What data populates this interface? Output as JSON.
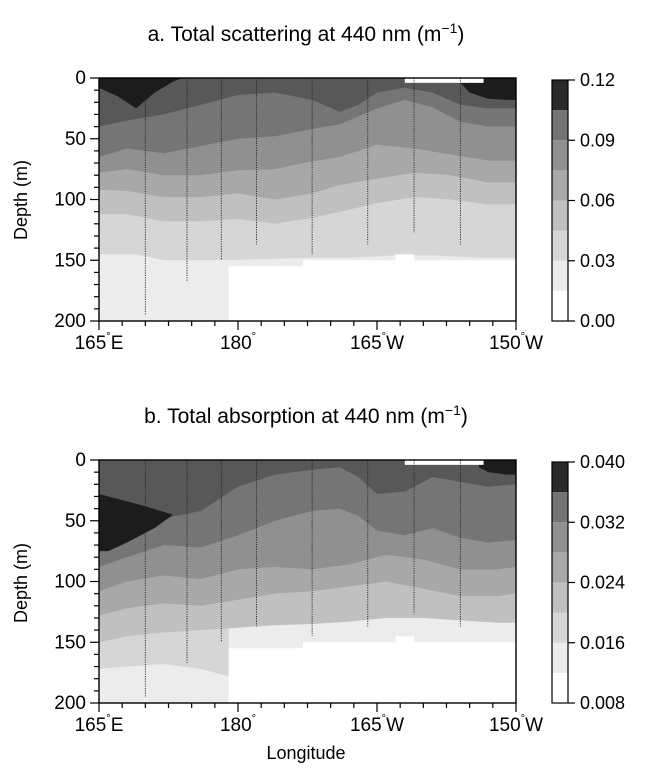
{
  "chart_data": [
    {
      "type": "heatmap",
      "panel": "a",
      "title": "a. Total scattering at 440 nm (m",
      "title_sup": "−1",
      "title_end": ")",
      "xlabel": "",
      "ylabel": "Depth (m)",
      "x_ticks": [
        165,
        180,
        195,
        210
      ],
      "x_tick_labels": [
        {
          "v": "165",
          "u": "E"
        },
        {
          "v": "180",
          "u": ""
        },
        {
          "v": "165",
          "u": "W"
        },
        {
          "v": "150",
          "u": "W"
        }
      ],
      "xlim": [
        165,
        210
      ],
      "ylim": [
        200,
        0
      ],
      "y_ticks": [
        0,
        50,
        100,
        150,
        200
      ],
      "y_tick_labels": [
        "0",
        "50",
        "100",
        "150",
        "200"
      ],
      "colorbar_levels": [
        0.0,
        0.015,
        0.03,
        0.045,
        0.06,
        0.075,
        0.09,
        0.105,
        0.12
      ],
      "colorbar_tick_values": [
        0.0,
        0.03,
        0.06,
        0.09,
        0.12
      ],
      "colorbar_tick_labels": [
        "0.00",
        "0.03",
        "0.06",
        "0.09",
        "0.12"
      ],
      "station_longitudes": [
        170,
        174.5,
        178.2,
        182,
        188,
        194,
        199,
        204
      ],
      "station_max_depth": [
        195,
        168,
        150,
        137,
        145,
        137,
        127,
        137
      ],
      "data_max_depth": [
        [
          165,
          200
        ],
        [
          168,
          200
        ],
        [
          168,
          200
        ],
        [
          179,
          200
        ],
        [
          179,
          155
        ],
        [
          187,
          155
        ],
        [
          187,
          150
        ],
        [
          197,
          150
        ],
        [
          197,
          145
        ],
        [
          199,
          145
        ],
        [
          199,
          150
        ],
        [
          210,
          150
        ]
      ],
      "contours": [
        {
          "level": 0.015,
          "depth": [
            [
              165,
              145
            ],
            [
              169,
              145
            ],
            [
              172,
              150
            ],
            [
              178,
              150
            ],
            [
              188,
              148
            ],
            [
              192,
              148
            ],
            [
              197,
              146
            ],
            [
              201,
              146
            ],
            [
              206,
              148
            ],
            [
              210,
              148
            ]
          ]
        },
        {
          "level": 0.03,
          "depth": [
            [
              165,
              112
            ],
            [
              168,
              112
            ],
            [
              172,
              118
            ],
            [
              176,
              118
            ],
            [
              180,
              116
            ],
            [
              184,
              120
            ],
            [
              188,
              115
            ],
            [
              191,
              110
            ],
            [
              195,
              103
            ],
            [
              199,
              98
            ],
            [
              203,
              100
            ],
            [
              207,
              104
            ],
            [
              210,
              104
            ]
          ]
        },
        {
          "level": 0.045,
          "depth": [
            [
              165,
              92
            ],
            [
              168,
              93
            ],
            [
              172,
              98
            ],
            [
              176,
              98
            ],
            [
              180,
              95
            ],
            [
              184,
              100
            ],
            [
              188,
              95
            ],
            [
              191,
              88
            ],
            [
              195,
              83
            ],
            [
              199,
              78
            ],
            [
              203,
              80
            ],
            [
              207,
              86
            ],
            [
              210,
              86
            ]
          ]
        },
        {
          "level": 0.06,
          "depth": [
            [
              165,
              78
            ],
            [
              168,
              75
            ],
            [
              172,
              80
            ],
            [
              176,
              80
            ],
            [
              180,
              76
            ],
            [
              184,
              75
            ],
            [
              187,
              70
            ],
            [
              191,
              65
            ],
            [
              195,
              55
            ],
            [
              199,
              58
            ],
            [
              203,
              63
            ],
            [
              207,
              68
            ],
            [
              210,
              68
            ]
          ]
        },
        {
          "level": 0.075,
          "depth": [
            [
              165,
              65
            ],
            [
              168,
              58
            ],
            [
              172,
              62
            ],
            [
              176,
              56
            ],
            [
              180,
              50
            ],
            [
              184,
              48
            ],
            [
              188,
              42
            ],
            [
              191,
              38
            ],
            [
              195,
              25
            ],
            [
              198,
              18
            ],
            [
              201,
              24
            ],
            [
              204,
              36
            ],
            [
              207,
              40
            ],
            [
              210,
              40
            ]
          ]
        },
        {
          "level": 0.09,
          "depth": [
            [
              165,
              40
            ],
            [
              168,
              35
            ],
            [
              172,
              30
            ],
            [
              176,
              22
            ],
            [
              180,
              14
            ],
            [
              184,
              12
            ],
            [
              188,
              18
            ],
            [
              191,
              28
            ],
            [
              193,
              22
            ],
            [
              195,
              12
            ],
            [
              198,
              8
            ],
            [
              201,
              12
            ],
            [
              204,
              22
            ],
            [
              207,
              25
            ],
            [
              210,
              25
            ]
          ]
        },
        {
          "level": 0.105,
          "depth": [
            [
              165,
              8
            ],
            [
              167,
              15
            ],
            [
              169,
              25
            ],
            [
              171,
              12
            ],
            [
              173,
              3
            ],
            [
              174,
              0
            ]
          ]
        },
        {
          "level": 0.105,
          "depth": [
            [
              204,
              4
            ],
            [
              205,
              12
            ],
            [
              207,
              17
            ],
            [
              209,
              18
            ],
            [
              210,
              18
            ]
          ]
        }
      ]
    },
    {
      "type": "heatmap",
      "panel": "b",
      "title": "b. Total absorption at 440 nm (m",
      "title_sup": "−1",
      "title_end": ")",
      "xlabel": "Longitude",
      "ylabel": "Depth (m)",
      "x_ticks": [
        165,
        180,
        195,
        210
      ],
      "x_tick_labels": [
        {
          "v": "165",
          "u": "E"
        },
        {
          "v": "180",
          "u": ""
        },
        {
          "v": "165",
          "u": "W"
        },
        {
          "v": "150",
          "u": "W"
        }
      ],
      "xlim": [
        165,
        210
      ],
      "ylim": [
        200,
        0
      ],
      "y_ticks": [
        0,
        50,
        100,
        150,
        200
      ],
      "y_tick_labels": [
        "0",
        "50",
        "100",
        "150",
        "200"
      ],
      "colorbar_levels": [
        0.008,
        0.012,
        0.016,
        0.02,
        0.024,
        0.028,
        0.032,
        0.036,
        0.04
      ],
      "colorbar_tick_values": [
        0.008,
        0.016,
        0.024,
        0.032,
        0.04
      ],
      "colorbar_tick_labels": [
        "0.008",
        "0.016",
        "0.024",
        "0.032",
        "0.040"
      ],
      "station_longitudes": [
        170,
        174.5,
        178.2,
        182,
        188,
        194,
        199,
        204
      ],
      "station_max_depth": [
        195,
        168,
        150,
        137,
        145,
        137,
        127,
        137
      ],
      "data_max_depth": [
        [
          165,
          200
        ],
        [
          168,
          200
        ],
        [
          168,
          200
        ],
        [
          179,
          200
        ],
        [
          179,
          155
        ],
        [
          187,
          155
        ],
        [
          187,
          150
        ],
        [
          197,
          150
        ],
        [
          197,
          145
        ],
        [
          199,
          145
        ],
        [
          199,
          150
        ],
        [
          210,
          150
        ]
      ],
      "contours": [
        {
          "level": 0.012,
          "depth": [
            [
              165,
              172
            ],
            [
              168,
              170
            ],
            [
              172,
              168
            ],
            [
              176,
              172
            ],
            [
              179,
              178
            ]
          ]
        },
        {
          "level": 0.016,
          "depth": [
            [
              165,
              150
            ],
            [
              168,
              145
            ],
            [
              172,
              142
            ],
            [
              176,
              140
            ],
            [
              180,
              138
            ],
            [
              184,
              136
            ],
            [
              188,
              135
            ],
            [
              192,
              133
            ],
            [
              196,
              130
            ],
            [
              200,
              130
            ],
            [
              204,
              132
            ],
            [
              208,
              134
            ],
            [
              210,
              134
            ]
          ]
        },
        {
          "level": 0.02,
          "depth": [
            [
              165,
              128
            ],
            [
              168,
              122
            ],
            [
              172,
              118
            ],
            [
              176,
              120
            ],
            [
              180,
              115
            ],
            [
              184,
              110
            ],
            [
              188,
              108
            ],
            [
              192,
              104
            ],
            [
              196,
              100
            ],
            [
              200,
              106
            ],
            [
              204,
              112
            ],
            [
              208,
              112
            ],
            [
              210,
              110
            ]
          ]
        },
        {
          "level": 0.024,
          "depth": [
            [
              165,
              108
            ],
            [
              168,
              100
            ],
            [
              172,
              95
            ],
            [
              176,
              98
            ],
            [
              180,
              90
            ],
            [
              184,
              88
            ],
            [
              188,
              90
            ],
            [
              192,
              86
            ],
            [
              196,
              78
            ],
            [
              200,
              82
            ],
            [
              204,
              90
            ],
            [
              208,
              90
            ],
            [
              210,
              88
            ]
          ]
        },
        {
          "level": 0.028,
          "depth": [
            [
              165,
              88
            ],
            [
              168,
              80
            ],
            [
              172,
              70
            ],
            [
              176,
              72
            ],
            [
              180,
              62
            ],
            [
              184,
              50
            ],
            [
              188,
              42
            ],
            [
              191,
              40
            ],
            [
              193,
              46
            ],
            [
              195,
              58
            ],
            [
              198,
              62
            ],
            [
              201,
              56
            ],
            [
              204,
              64
            ],
            [
              207,
              68
            ],
            [
              210,
              66
            ]
          ]
        },
        {
          "level": 0.032,
          "depth": [
            [
              165,
              76
            ],
            [
              167,
              70
            ],
            [
              169,
              60
            ],
            [
              172,
              48
            ],
            [
              176,
              42
            ],
            [
              180,
              22
            ],
            [
              184,
              12
            ],
            [
              188,
              8
            ],
            [
              191,
              6
            ],
            [
              193,
              14
            ],
            [
              195,
              28
            ],
            [
              198,
              26
            ],
            [
              201,
              14
            ],
            [
              204,
              18
            ],
            [
              207,
              22
            ],
            [
              210,
              20
            ]
          ]
        },
        {
          "level": 0.036,
          "depth": [
            [
              165,
              28
            ],
            [
              167,
              32
            ],
            [
              170,
              38
            ],
            [
              173,
              45
            ],
            [
              171,
              56
            ],
            [
              168,
              68
            ],
            [
              166,
              75
            ],
            [
              165,
              75
            ]
          ]
        },
        {
          "level": 0.036,
          "depth": [
            [
              206,
              6
            ],
            [
              207,
              10
            ],
            [
              209,
              12
            ],
            [
              210,
              12
            ]
          ]
        }
      ]
    }
  ]
}
